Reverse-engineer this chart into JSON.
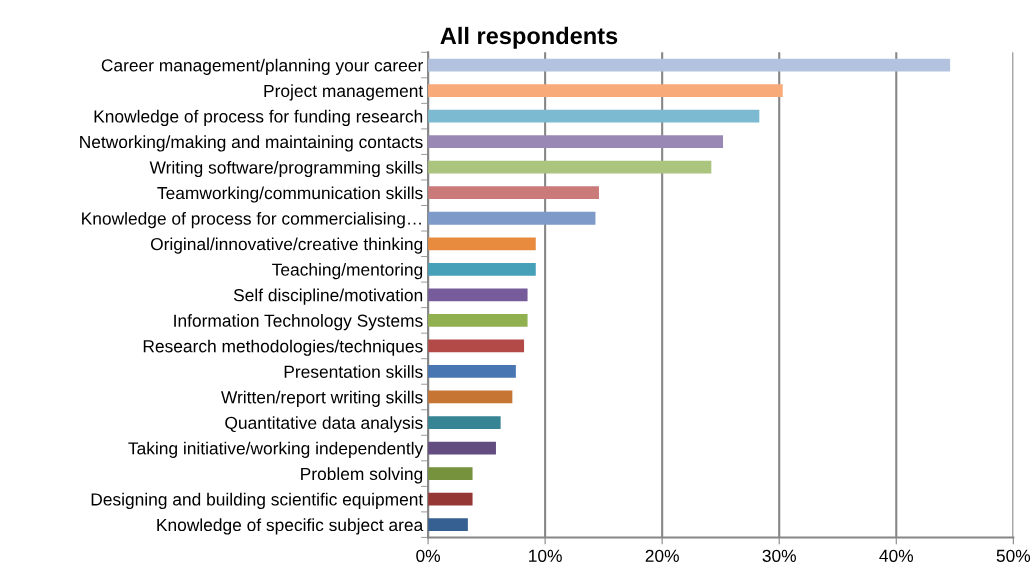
{
  "chart_data": {
    "type": "bar",
    "orientation": "horizontal",
    "title": "All respondents",
    "categories": [
      "Career management/planning your career",
      "Project management",
      "Knowledge of process for funding research",
      "Networking/making and maintaining contacts",
      "Writing software/programming skills",
      "Teamworking/communication skills",
      "Knowledge of process for commercialising…",
      "Original/innovative/creative thinking",
      "Teaching/mentoring",
      "Self discipline/motivation",
      "Information Technology Systems",
      "Research methodologies/techniques",
      "Presentation skills",
      "Written/report writing skills",
      "Quantitative data analysis",
      "Taking initiative/working independently",
      "Problem solving",
      "Designing and building scientific equipment",
      "Knowledge of specific subject area"
    ],
    "values": [
      44.6,
      30.3,
      28.3,
      25.2,
      24.2,
      14.6,
      14.3,
      9.2,
      9.2,
      8.5,
      8.5,
      8.2,
      7.5,
      7.2,
      6.2,
      5.8,
      3.8,
      3.8,
      3.4
    ],
    "colors": [
      "#b3c3df",
      "#f8aa78",
      "#7bbad0",
      "#9a88b4",
      "#abc47e",
      "#cb7a7a",
      "#7d9ac8",
      "#e88b3f",
      "#45a0b8",
      "#775c9b",
      "#91b150",
      "#b44a47",
      "#4876b3",
      "#c77533",
      "#378494",
      "#634c80",
      "#76923c",
      "#953735",
      "#366092"
    ],
    "xlim": [
      0,
      50
    ],
    "xticks": [
      {
        "value": 0,
        "label": "0%"
      },
      {
        "value": 10,
        "label": "10%"
      },
      {
        "value": 20,
        "label": "20%"
      },
      {
        "value": 30,
        "label": "30%"
      },
      {
        "value": 40,
        "label": "40%"
      },
      {
        "value": 50,
        "label": "50%"
      }
    ],
    "grid": "x"
  }
}
